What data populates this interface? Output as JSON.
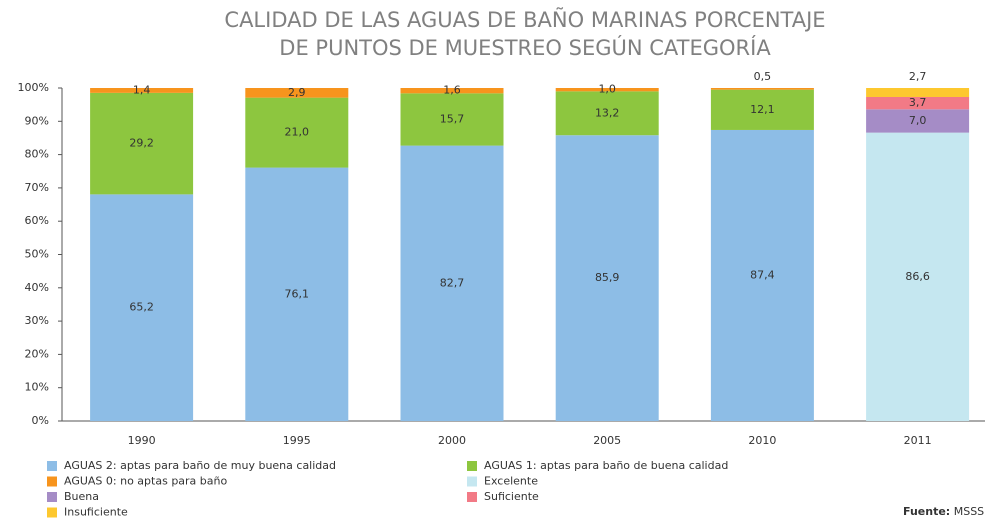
{
  "chart_data": {
    "type": "bar",
    "stack": "percent",
    "title": [
      "CALIDAD DE LAS AGUAS DE BAÑO MARINAS PORCENTAJE",
      "DE PUNTOS DE MUESTREO SEGÚN CATEGORÍA"
    ],
    "categories": [
      "1990",
      "1995",
      "2000",
      "2005",
      "2010",
      "2011"
    ],
    "series": [
      {
        "name": "AGUAS 2: aptas para baño de muy buena calidad",
        "color": "#8dbde6",
        "values": [
          65.2,
          76.1,
          82.7,
          85.9,
          87.4,
          null
        ],
        "value_labels": [
          "65,2",
          "76,1",
          "82,7",
          "85,9",
          "87,4",
          null
        ]
      },
      {
        "name": "AGUAS 1: aptas para baño de buena calidad",
        "color": "#8dc63f",
        "values": [
          29.2,
          21.0,
          15.7,
          13.2,
          12.1,
          null
        ],
        "value_labels": [
          "29,2",
          "21,0",
          "15,7",
          "13,2",
          "12,1",
          null
        ]
      },
      {
        "name": "AGUAS 0: no aptas para baño",
        "color": "#f7941d",
        "values": [
          1.4,
          2.9,
          1.6,
          1.0,
          0.5,
          null
        ],
        "value_labels": [
          "1,4",
          "2,9",
          "1,6",
          "1,0",
          "0,5",
          null
        ]
      },
      {
        "name": "Excelente",
        "color": "#c5e7f0",
        "values": [
          null,
          null,
          null,
          null,
          null,
          86.6
        ],
        "value_labels": [
          null,
          null,
          null,
          null,
          null,
          "86,6"
        ]
      },
      {
        "name": "Buena",
        "color": "#a58cc6",
        "values": [
          null,
          null,
          null,
          null,
          null,
          7.0
        ],
        "value_labels": [
          null,
          null,
          null,
          null,
          null,
          "7,0"
        ]
      },
      {
        "name": "Suficiente",
        "color": "#f27a86",
        "values": [
          null,
          null,
          null,
          null,
          null,
          3.7
        ],
        "value_labels": [
          null,
          null,
          null,
          null,
          null,
          "3,7"
        ]
      },
      {
        "name": "Insuficiente",
        "color": "#fdc82f",
        "values": [
          null,
          null,
          null,
          null,
          null,
          2.7
        ],
        "value_labels": [
          null,
          null,
          null,
          null,
          null,
          "2,7"
        ]
      }
    ],
    "ylim": [
      0,
      100
    ],
    "yticks": [
      {
        "value": 0,
        "label": "0%"
      },
      {
        "value": 10,
        "label": "10%"
      },
      {
        "value": 20,
        "label": "20%"
      },
      {
        "value": 30,
        "label": "30%"
      },
      {
        "value": 40,
        "label": "40%"
      },
      {
        "value": 50,
        "label": "50%"
      },
      {
        "value": 60,
        "label": "60%"
      },
      {
        "value": 70,
        "label": "70%"
      },
      {
        "value": 80,
        "label": "80%"
      },
      {
        "value": 90,
        "label": "90%"
      },
      {
        "value": 100,
        "label": "100%"
      }
    ],
    "source_label": "Fuente:",
    "source": "MSSS"
  }
}
